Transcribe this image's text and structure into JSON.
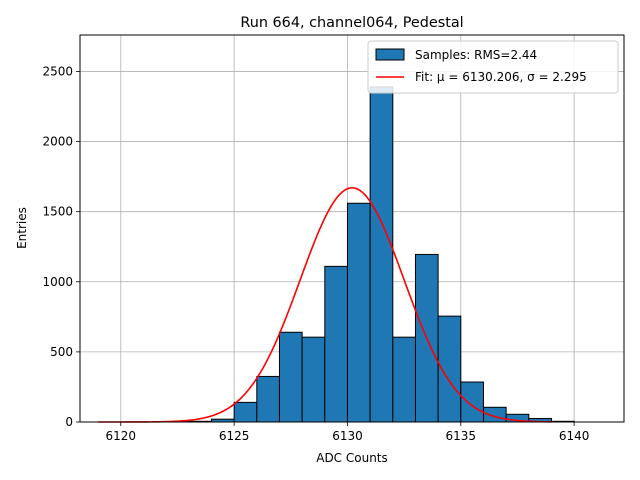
{
  "chart_data": {
    "type": "bar",
    "title": "Run 664, channel064, Pedestal",
    "xlabel": "ADC Counts",
    "ylabel": "Entries",
    "xlim": [
      6118.2,
      6142.2
    ],
    "ylim": [
      0,
      2760
    ],
    "xticks": [
      6120,
      6125,
      6130,
      6135,
      6140
    ],
    "yticks": [
      0,
      500,
      1000,
      1500,
      2000,
      2500
    ],
    "grid": true,
    "legend_position": "top-right",
    "bin_width": 1,
    "bins": [
      {
        "x0": 6122,
        "count": 3
      },
      {
        "x0": 6123,
        "count": 5
      },
      {
        "x0": 6124,
        "count": 20
      },
      {
        "x0": 6125,
        "count": 140
      },
      {
        "x0": 6126,
        "count": 325
      },
      {
        "x0": 6127,
        "count": 640
      },
      {
        "x0": 6128,
        "count": 605
      },
      {
        "x0": 6129,
        "count": 1110
      },
      {
        "x0": 6130,
        "count": 1560
      },
      {
        "x0": 6131,
        "count": 2390
      },
      {
        "x0": 6132,
        "count": 605
      },
      {
        "x0": 6133,
        "count": 1195
      },
      {
        "x0": 6134,
        "count": 755
      },
      {
        "x0": 6135,
        "count": 285
      },
      {
        "x0": 6136,
        "count": 105
      },
      {
        "x0": 6137,
        "count": 55
      },
      {
        "x0": 6138,
        "count": 25
      },
      {
        "x0": 6139,
        "count": 5
      }
    ],
    "fit": {
      "mu": 6130.206,
      "sigma": 2.295,
      "amplitude": 1670,
      "x_range": [
        6119,
        6139
      ]
    },
    "series": [
      {
        "name": "Samples: RMS=2.44",
        "color": "#1f77b4",
        "kind": "histogram"
      },
      {
        "name": "Fit: μ = 6130.206, σ = 2.295",
        "color": "#ff0000",
        "kind": "line"
      }
    ]
  }
}
